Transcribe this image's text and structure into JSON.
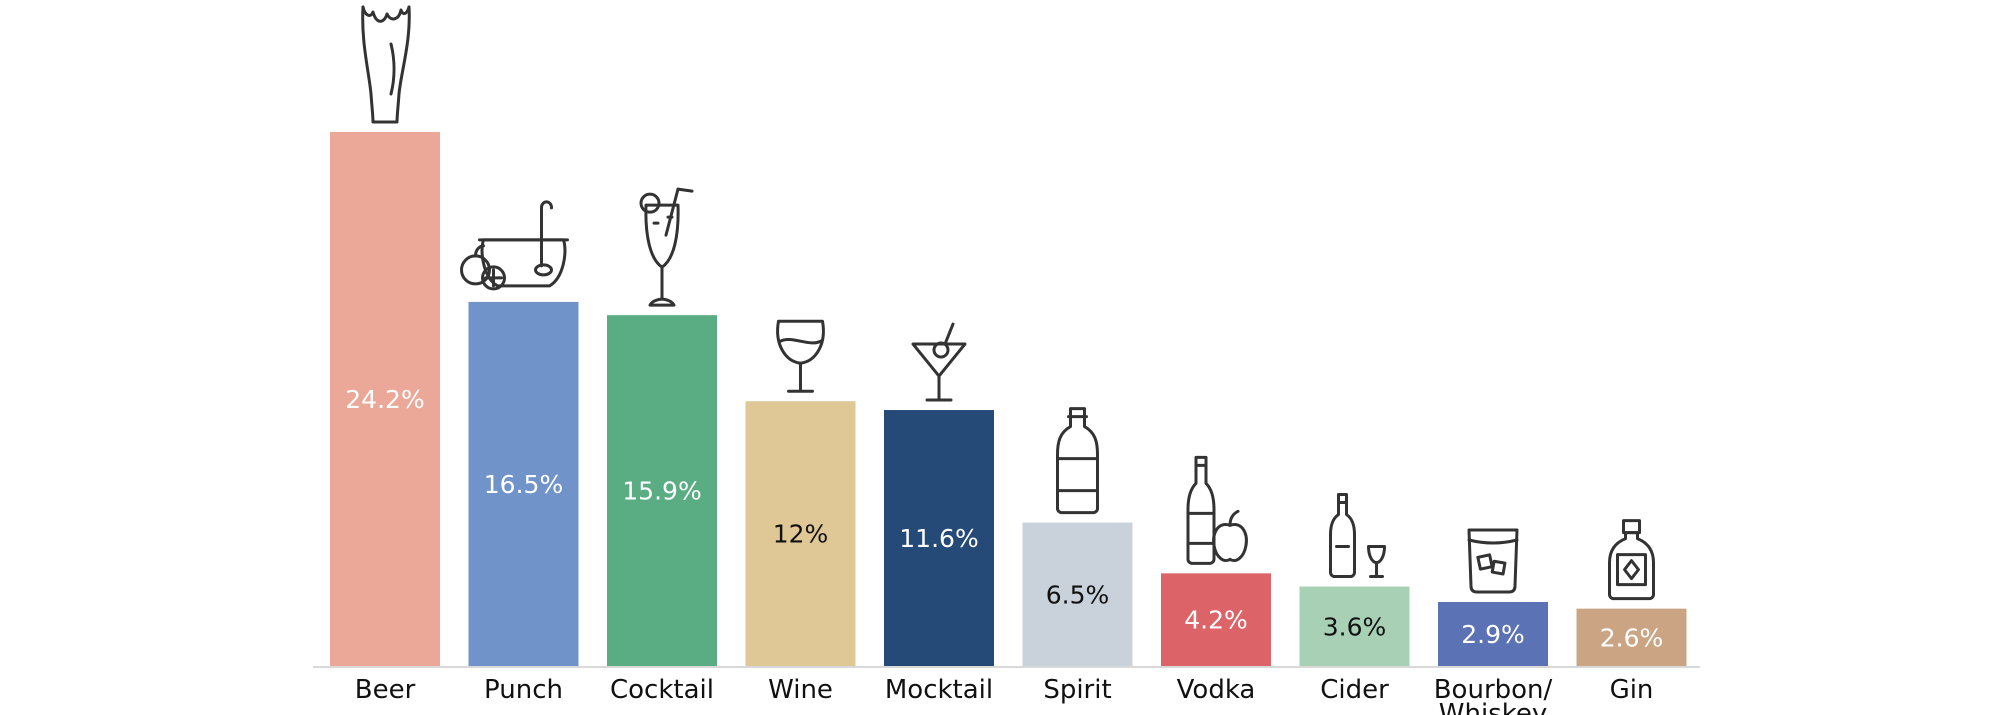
{
  "chart_data": {
    "type": "bar",
    "title": "",
    "xlabel": "",
    "ylabel": "",
    "ylim": [
      0,
      24.2
    ],
    "grid": false,
    "legend": "none",
    "categories": [
      "Beer",
      "Punch",
      "Cocktail",
      "Wine",
      "Mocktail",
      "Spirit",
      "Vodka",
      "Cider",
      "Bourbon/ Whiskey",
      "Gin"
    ],
    "category_lines": [
      [
        "Beer"
      ],
      [
        "Punch"
      ],
      [
        "Cocktail"
      ],
      [
        "Wine"
      ],
      [
        "Mocktail"
      ],
      [
        "Spirit"
      ],
      [
        "Vodka"
      ],
      [
        "Cider"
      ],
      [
        "Bourbon/",
        "Whiskey"
      ],
      [
        "Gin"
      ]
    ],
    "values": [
      24.2,
      16.5,
      15.9,
      12,
      11.6,
      6.5,
      4.2,
      3.6,
      2.9,
      2.6
    ],
    "value_labels": [
      "24.2%",
      "16.5%",
      "15.9%",
      "12%",
      "11.6%",
      "6.5%",
      "4.2%",
      "3.6%",
      "2.9%",
      "2.6%"
    ],
    "colors": [
      "#eba898",
      "#7093c9",
      "#5aac83",
      "#e0c796",
      "#254a78",
      "#c9d1da",
      "#dc6468",
      "#a8d0b4",
      "#5b72b5",
      "#cba583"
    ],
    "label_colors": [
      "#ffffff",
      "#ffffff",
      "#ffffff",
      "#111111",
      "#ffffff",
      "#111111",
      "#ffffff",
      "#111111",
      "#ffffff",
      "#ffffff"
    ],
    "icons": [
      "beer-glass-icon",
      "punch-bowl-icon",
      "cocktail-glass-icon",
      "wine-glass-icon",
      "martini-glass-icon",
      "spirit-bottle-icon",
      "vodka-bottle-apple-icon",
      "cider-bottle-glass-icon",
      "whiskey-tumbler-icon",
      "gin-bottle-icon"
    ]
  }
}
